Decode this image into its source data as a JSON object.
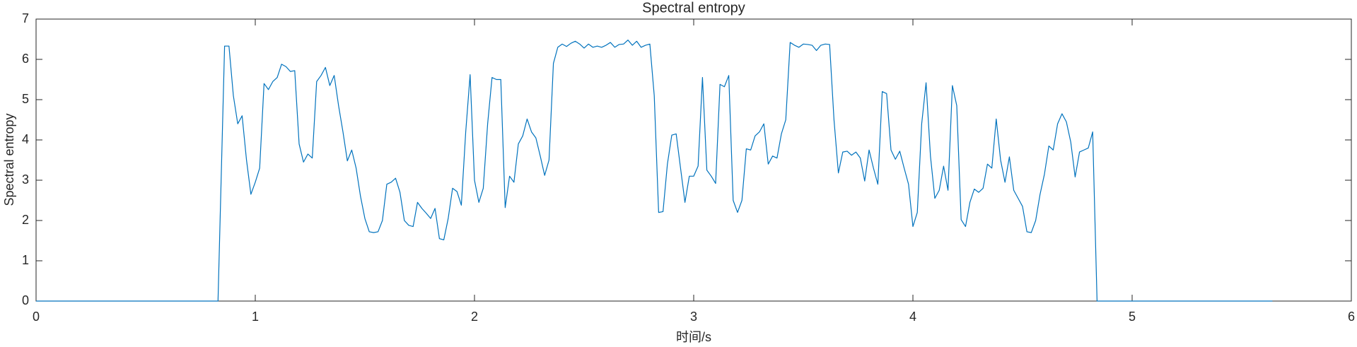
{
  "chart_data": {
    "type": "line",
    "title": "Spectral entropy",
    "x_label": "时间/s",
    "y_label": "Spectral entropy",
    "xlim": [
      0,
      6
    ],
    "ylim": [
      0,
      7
    ],
    "xticks": [
      0,
      1,
      2,
      3,
      4,
      5,
      6
    ],
    "yticks": [
      0,
      1,
      2,
      3,
      4,
      5,
      6,
      7
    ],
    "x": [
      0,
      0.83,
      0.86,
      0.88,
      0.9,
      0.92,
      0.94,
      0.96,
      0.98,
      1.0,
      1.02,
      1.04,
      1.06,
      1.08,
      1.1,
      1.12,
      1.14,
      1.16,
      1.18,
      1.2,
      1.22,
      1.24,
      1.26,
      1.28,
      1.3,
      1.32,
      1.34,
      1.36,
      1.38,
      1.4,
      1.42,
      1.44,
      1.46,
      1.48,
      1.5,
      1.52,
      1.54,
      1.56,
      1.58,
      1.6,
      1.62,
      1.64,
      1.66,
      1.68,
      1.7,
      1.72,
      1.74,
      1.76,
      1.78,
      1.8,
      1.82,
      1.84,
      1.86,
      1.88,
      1.9,
      1.92,
      1.94,
      1.96,
      1.98,
      2.0,
      2.02,
      2.04,
      2.06,
      2.08,
      2.1,
      2.12,
      2.14,
      2.16,
      2.18,
      2.2,
      2.22,
      2.24,
      2.26,
      2.28,
      2.3,
      2.32,
      2.34,
      2.36,
      2.38,
      2.4,
      2.42,
      2.44,
      2.46,
      2.48,
      2.5,
      2.52,
      2.54,
      2.56,
      2.58,
      2.6,
      2.62,
      2.64,
      2.66,
      2.68,
      2.7,
      2.72,
      2.74,
      2.76,
      2.78,
      2.8,
      2.82,
      2.84,
      2.86,
      2.88,
      2.9,
      2.92,
      2.94,
      2.96,
      2.98,
      3.0,
      3.02,
      3.04,
      3.06,
      3.08,
      3.1,
      3.12,
      3.14,
      3.16,
      3.18,
      3.2,
      3.22,
      3.24,
      3.26,
      3.28,
      3.3,
      3.32,
      3.34,
      3.36,
      3.38,
      3.4,
      3.42,
      3.44,
      3.46,
      3.48,
      3.5,
      3.52,
      3.54,
      3.56,
      3.58,
      3.6,
      3.62,
      3.64,
      3.66,
      3.68,
      3.7,
      3.72,
      3.74,
      3.76,
      3.78,
      3.8,
      3.82,
      3.84,
      3.86,
      3.88,
      3.9,
      3.92,
      3.94,
      3.96,
      3.98,
      4.0,
      4.02,
      4.04,
      4.06,
      4.08,
      4.1,
      4.12,
      4.14,
      4.16,
      4.18,
      4.2,
      4.22,
      4.24,
      4.26,
      4.28,
      4.3,
      4.32,
      4.34,
      4.36,
      4.38,
      4.4,
      4.42,
      4.44,
      4.46,
      4.48,
      4.5,
      4.52,
      4.54,
      4.56,
      4.58,
      4.6,
      4.62,
      4.64,
      4.66,
      4.68,
      4.7,
      4.72,
      4.74,
      4.76,
      4.78,
      4.8,
      4.82,
      4.84,
      5.64
    ],
    "series": [
      {
        "color": "#0072bd",
        "values": [
          0,
          0,
          6.33,
          6.33,
          5.1,
          4.4,
          4.6,
          3.5,
          2.65,
          2.95,
          3.3,
          5.4,
          5.25,
          5.45,
          5.55,
          5.88,
          5.82,
          5.7,
          5.72,
          3.9,
          3.45,
          3.65,
          3.55,
          5.45,
          5.6,
          5.8,
          5.35,
          5.6,
          4.85,
          4.2,
          3.48,
          3.75,
          3.3,
          2.6,
          2.05,
          1.72,
          1.7,
          1.72,
          2.0,
          2.9,
          2.95,
          3.05,
          2.7,
          2.0,
          1.88,
          1.85,
          2.45,
          2.3,
          2.18,
          2.05,
          2.3,
          1.55,
          1.52,
          2.05,
          2.8,
          2.72,
          2.38,
          4.2,
          5.62,
          3.0,
          2.45,
          2.8,
          4.4,
          5.55,
          5.5,
          5.5,
          2.32,
          3.1,
          2.95,
          3.9,
          4.1,
          4.52,
          4.2,
          4.05,
          3.6,
          3.12,
          3.5,
          5.9,
          6.3,
          6.38,
          6.32,
          6.4,
          6.45,
          6.38,
          6.28,
          6.38,
          6.3,
          6.33,
          6.3,
          6.35,
          6.42,
          6.3,
          6.37,
          6.38,
          6.48,
          6.35,
          6.45,
          6.3,
          6.35,
          6.38,
          5.1,
          2.2,
          2.22,
          3.4,
          4.12,
          4.15,
          3.3,
          2.45,
          3.1,
          3.1,
          3.35,
          5.55,
          3.25,
          3.1,
          2.92,
          5.38,
          5.32,
          5.6,
          2.5,
          2.2,
          2.5,
          3.78,
          3.75,
          4.1,
          4.2,
          4.4,
          3.4,
          3.6,
          3.55,
          4.15,
          4.5,
          6.42,
          6.35,
          6.3,
          6.38,
          6.37,
          6.35,
          6.22,
          6.35,
          6.38,
          6.37,
          4.5,
          3.18,
          3.7,
          3.72,
          3.62,
          3.7,
          3.55,
          2.98,
          3.75,
          3.3,
          2.9,
          5.2,
          5.15,
          3.75,
          3.52,
          3.72,
          3.3,
          2.9,
          1.85,
          2.2,
          4.4,
          5.42,
          3.6,
          2.55,
          2.75,
          3.35,
          2.75,
          5.35,
          4.85,
          2.02,
          1.85,
          2.45,
          2.78,
          2.7,
          2.8,
          3.4,
          3.3,
          4.52,
          3.5,
          2.95,
          3.58,
          2.75,
          2.55,
          2.35,
          1.72,
          1.7,
          2.0,
          2.65,
          3.15,
          3.85,
          3.75,
          4.4,
          4.65,
          4.45,
          3.95,
          3.08,
          3.7,
          3.75,
          3.8,
          4.2,
          0,
          0
        ]
      }
    ]
  }
}
